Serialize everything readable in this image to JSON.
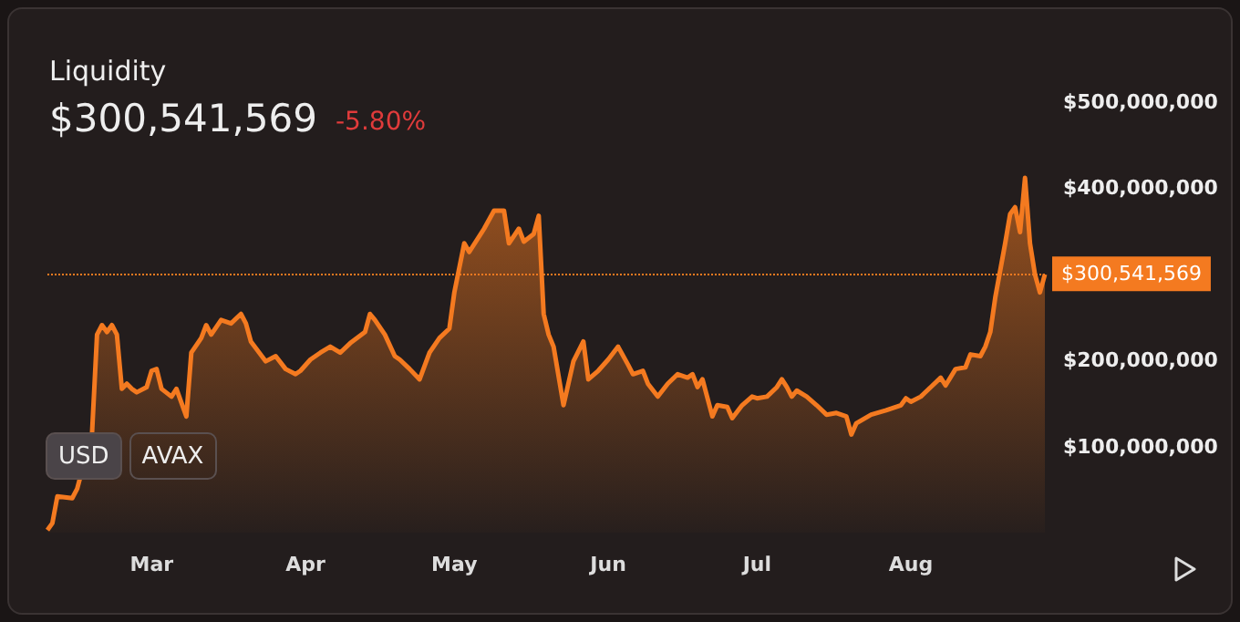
{
  "chart_data": {
    "type": "area",
    "title": "Liquidity",
    "subtitle": "$300,541,569",
    "annotations": [
      "-5.80%",
      "USD",
      "AVAX"
    ],
    "x": [
      "--02-08",
      "--02-09",
      "--02-10",
      "--02-13",
      "--02-14",
      "--02-17",
      "--02-18",
      "--02-19",
      "--02-20",
      "--02-21",
      "--02-22",
      "--02-23",
      "--02-24",
      "--02-25",
      "--02-26",
      "--02-28",
      "--03-01",
      "--03-02",
      "--03-03",
      "--03-05",
      "--03-06",
      "--03-08",
      "--03-09",
      "--03-11",
      "--03-12",
      "--03-13",
      "--03-15",
      "--03-17",
      "--03-19",
      "--03-20",
      "--03-21",
      "--03-24",
      "--03-26",
      "--03-28",
      "--03-30",
      "--03-31",
      "--04-02",
      "--04-04",
      "--04-06",
      "--04-08",
      "--04-10",
      "--04-13",
      "--04-14",
      "--04-15",
      "--04-17",
      "--04-19",
      "--04-20",
      "--04-22",
      "--04-24",
      "--04-26",
      "--04-28",
      "--04-30",
      "--05-01",
      "--05-03",
      "--05-04",
      "--05-07",
      "--05-09",
      "--05-11",
      "--05-12",
      "--05-14",
      "--05-15",
      "--05-17",
      "--05-18",
      "--05-19",
      "--05-20",
      "--05-21",
      "--05-23",
      "--05-25",
      "--05-27",
      "--05-28",
      "--05-30",
      "--06-01",
      "--06-03",
      "--06-05",
      "--06-06",
      "--06-08",
      "--06-09",
      "--06-11",
      "--06-13",
      "--06-15",
      "--06-17",
      "--06-18",
      "--06-19",
      "--06-20",
      "--06-22",
      "--06-23",
      "--06-25",
      "--06-26",
      "--06-28",
      "--06-30",
      "--07-01",
      "--07-03",
      "--07-05",
      "--07-06",
      "--07-07",
      "--07-08",
      "--07-09",
      "--07-11",
      "--07-13",
      "--07-15",
      "--07-17",
      "--07-19",
      "--07-20",
      "--07-21",
      "--07-24",
      "--07-27",
      "--07-30",
      "--07-31",
      "--08-01",
      "--08-03",
      "--08-05",
      "--08-07",
      "--08-08",
      "--08-10",
      "--08-12",
      "--08-13",
      "--08-15",
      "--08-16",
      "--08-17",
      "--08-18",
      "--08-20",
      "--08-21",
      "--08-22",
      "--08-23",
      "--08-24",
      "--08-25",
      "--08-26",
      "--08-27",
      "--08-28"
    ],
    "series": [
      {
        "color": "#f47a20",
        "values": [
          3000000,
          11000000,
          42000000,
          40000000,
          51000000,
          116000000,
          230000000,
          241000000,
          233000000,
          241000000,
          230000000,
          167000000,
          173000000,
          167000000,
          163000000,
          169000000,
          188000000,
          190000000,
          167000000,
          158000000,
          167000000,
          135000000,
          209000000,
          226000000,
          241000000,
          230000000,
          247000000,
          243000000,
          254000000,
          243000000,
          222000000,
          199000000,
          205000000,
          190000000,
          184000000,
          188000000,
          201000000,
          209000000,
          216000000,
          209000000,
          220000000,
          233000000,
          254000000,
          247000000,
          230000000,
          205000000,
          201000000,
          190000000,
          178000000,
          209000000,
          226000000,
          237000000,
          279000000,
          336000000,
          326000000,
          353000000,
          374000000,
          374000000,
          336000000,
          353000000,
          338000000,
          347000000,
          368000000,
          254000000,
          230000000,
          216000000,
          148000000,
          199000000,
          222000000,
          178000000,
          188000000,
          201000000,
          216000000,
          195000000,
          184000000,
          188000000,
          173000000,
          158000000,
          173000000,
          184000000,
          180000000,
          184000000,
          169000000,
          178000000,
          135000000,
          148000000,
          146000000,
          133000000,
          148000000,
          158000000,
          156000000,
          158000000,
          169000000,
          178000000,
          169000000,
          158000000,
          165000000,
          158000000,
          148000000,
          137000000,
          139000000,
          135000000,
          114000000,
          127000000,
          137000000,
          142000000,
          148000000,
          156000000,
          152000000,
          158000000,
          169000000,
          180000000,
          171000000,
          190000000,
          192000000,
          207000000,
          205000000,
          216000000,
          233000000,
          273000000,
          336000000,
          370000000,
          378000000,
          349000000,
          412000000,
          336000000,
          300000000,
          279000000,
          300000000
        ]
      }
    ],
    "xlim": [
      "--02-08",
      "--08-28"
    ],
    "xticks": [
      {
        "value": "--03-01",
        "label": "Mar"
      },
      {
        "value": "--04-01",
        "label": "Apr"
      },
      {
        "value": "--05-01",
        "label": "May"
      },
      {
        "value": "--06-01",
        "label": "Jun"
      },
      {
        "value": "--07-01",
        "label": "Jul"
      },
      {
        "value": "--08-01",
        "label": "Aug"
      }
    ],
    "ylim": [
      0,
      500000000
    ],
    "yticks": [
      {
        "value": 100000000,
        "label": "$100,000,000"
      },
      {
        "value": 200000000,
        "label": "$200,000,000"
      },
      {
        "value": 300000000,
        "label": null
      },
      {
        "value": 400000000,
        "label": "$400,000,000"
      },
      {
        "value": 500000000,
        "label": "$500,000,000"
      }
    ],
    "ref_lines": [
      {
        "axis": "y",
        "value": 300541569,
        "label": "$300,541,569",
        "color": "#f47a20",
        "line_style": "dotted"
      }
    ],
    "grid": false,
    "marker": "none",
    "line_style": "solid"
  }
}
